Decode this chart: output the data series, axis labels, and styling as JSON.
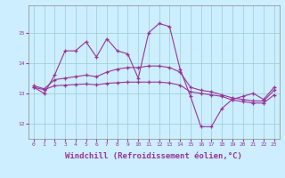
{
  "windchill": [
    13.2,
    13.0,
    13.6,
    14.4,
    14.4,
    14.7,
    14.2,
    14.8,
    14.4,
    14.3,
    13.5,
    15.0,
    15.3,
    15.2,
    13.8,
    12.9,
    11.9,
    11.9,
    12.5,
    12.8,
    12.9,
    13.0,
    12.8,
    13.2
  ],
  "line2": [
    13.25,
    13.15,
    13.45,
    13.5,
    13.55,
    13.6,
    13.55,
    13.7,
    13.8,
    13.85,
    13.85,
    13.9,
    13.9,
    13.85,
    13.7,
    13.2,
    13.1,
    13.05,
    12.95,
    12.85,
    12.8,
    12.75,
    12.75,
    13.1
  ],
  "line3": [
    13.2,
    13.12,
    13.25,
    13.27,
    13.29,
    13.31,
    13.28,
    13.33,
    13.35,
    13.37,
    13.37,
    13.37,
    13.37,
    13.34,
    13.27,
    13.05,
    13.0,
    12.95,
    12.9,
    12.78,
    12.73,
    12.68,
    12.68,
    12.95
  ],
  "color": "#993399",
  "bg_color": "#cceeff",
  "grid_color": "#99cccc",
  "xlabel": "Windchill (Refroidissement éolien,°C)",
  "xlabel_fontsize": 6.5,
  "xtick_labels": [
    "0",
    "1",
    "2",
    "3",
    "4",
    "5",
    "6",
    "7",
    "8",
    "9",
    "10",
    "11",
    "12",
    "13",
    "14",
    "15",
    "16",
    "17",
    "18",
    "19",
    "20",
    "21",
    "22",
    "23"
  ],
  "yticks": [
    12,
    13,
    14,
    15
  ],
  "ylim": [
    11.5,
    15.9
  ],
  "xlim": [
    -0.5,
    23.5
  ]
}
